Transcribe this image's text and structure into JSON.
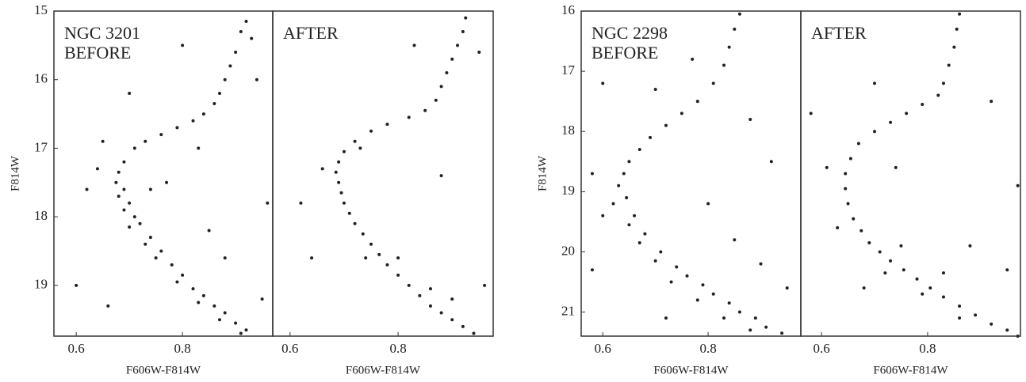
{
  "chart_data": [
    {
      "type": "scatter",
      "annotation": [
        "NGC 3201",
        "BEFORE"
      ],
      "xlabel": "F606W-F814W",
      "ylabel": "F814W",
      "color": "#222222",
      "xlim": [
        0.558,
        0.97
      ],
      "ylim": [
        19.74,
        15
      ],
      "xticks": [
        0.6,
        0.8
      ],
      "yticks": [
        15,
        16,
        17,
        18,
        19
      ],
      "x": [
        0.92,
        0.91,
        0.93,
        0.9,
        0.89,
        0.88,
        0.87,
        0.86,
        0.84,
        0.82,
        0.79,
        0.76,
        0.73,
        0.71,
        0.69,
        0.68,
        0.675,
        0.69,
        0.68,
        0.7,
        0.69,
        0.71,
        0.72,
        0.7,
        0.74,
        0.73,
        0.76,
        0.75,
        0.78,
        0.8,
        0.79,
        0.82,
        0.84,
        0.83,
        0.86,
        0.88,
        0.87,
        0.9,
        0.92,
        0.91,
        0.64,
        0.62,
        0.77,
        0.85,
        0.95,
        0.6,
        0.66,
        0.83,
        0.94,
        0.96,
        0.8,
        0.7,
        0.88,
        0.65,
        0.74
      ],
      "values": [
        15.15,
        15.3,
        15.4,
        15.6,
        15.8,
        16.0,
        16.2,
        16.35,
        16.5,
        16.6,
        16.7,
        16.8,
        16.9,
        17.0,
        17.2,
        17.35,
        17.5,
        17.6,
        17.7,
        17.8,
        17.9,
        18.0,
        18.1,
        18.15,
        18.3,
        18.4,
        18.5,
        18.6,
        18.7,
        18.85,
        18.95,
        19.05,
        19.15,
        19.25,
        19.3,
        19.4,
        19.5,
        19.55,
        19.65,
        19.7,
        17.3,
        17.6,
        17.5,
        18.2,
        19.2,
        19.0,
        19.3,
        17.0,
        16.0,
        17.8,
        15.5,
        16.2,
        18.6,
        16.9,
        17.6
      ]
    },
    {
      "type": "scatter",
      "annotation": [
        "AFTER"
      ],
      "xlabel": "F606W-F814W",
      "color": "#222222",
      "xlim": [
        0.568,
        0.976
      ],
      "ylim": [
        19.74,
        15
      ],
      "xticks": [
        0.6,
        0.8
      ],
      "x": [
        0.925,
        0.92,
        0.91,
        0.9,
        0.89,
        0.88,
        0.87,
        0.85,
        0.82,
        0.78,
        0.75,
        0.72,
        0.7,
        0.69,
        0.685,
        0.69,
        0.695,
        0.7,
        0.71,
        0.72,
        0.735,
        0.75,
        0.765,
        0.78,
        0.8,
        0.82,
        0.84,
        0.86,
        0.88,
        0.9,
        0.92,
        0.94,
        0.74,
        0.8,
        0.86,
        0.9,
        0.66,
        0.95,
        0.62,
        0.83,
        0.96,
        0.73,
        0.88,
        0.64
      ],
      "values": [
        15.1,
        15.3,
        15.5,
        15.7,
        15.9,
        16.1,
        16.3,
        16.45,
        16.55,
        16.65,
        16.75,
        16.9,
        17.05,
        17.2,
        17.35,
        17.5,
        17.65,
        17.8,
        17.95,
        18.1,
        18.25,
        18.4,
        18.55,
        18.7,
        18.85,
        19.0,
        19.15,
        19.3,
        19.4,
        19.5,
        19.6,
        19.7,
        18.6,
        18.6,
        19.05,
        19.2,
        17.3,
        15.6,
        17.8,
        15.5,
        19.0,
        17.0,
        17.4,
        18.6
      ]
    },
    {
      "type": "scatter",
      "annotation": [
        "NGC 2298",
        "BEFORE"
      ],
      "xlabel": "F606W-F814W",
      "ylabel": "F814W",
      "color": "#222222",
      "xlim": [
        0.559,
        0.976
      ],
      "ylim": [
        21.4,
        16
      ],
      "xticks": [
        0.6,
        0.8
      ],
      "yticks": [
        16,
        17,
        18,
        19,
        20,
        21
      ],
      "x": [
        0.86,
        0.85,
        0.84,
        0.83,
        0.81,
        0.78,
        0.75,
        0.72,
        0.69,
        0.67,
        0.65,
        0.64,
        0.63,
        0.645,
        0.62,
        0.66,
        0.65,
        0.68,
        0.67,
        0.71,
        0.7,
        0.74,
        0.76,
        0.73,
        0.79,
        0.81,
        0.78,
        0.84,
        0.86,
        0.83,
        0.89,
        0.91,
        0.88,
        0.94,
        0.58,
        0.6,
        0.7,
        0.77,
        0.88,
        0.8,
        0.9,
        0.95,
        0.6,
        0.72,
        0.85,
        0.92,
        0.58
      ],
      "values": [
        16.05,
        16.3,
        16.6,
        16.9,
        17.2,
        17.5,
        17.7,
        17.9,
        18.1,
        18.3,
        18.5,
        18.7,
        18.9,
        19.1,
        19.2,
        19.4,
        19.55,
        19.7,
        19.85,
        20.0,
        20.15,
        20.25,
        20.4,
        20.5,
        20.55,
        20.7,
        20.8,
        20.85,
        21.0,
        21.1,
        21.1,
        21.25,
        21.3,
        21.35,
        18.7,
        19.4,
        17.3,
        16.8,
        17.8,
        19.2,
        20.2,
        20.6,
        17.2,
        21.1,
        19.8,
        18.5,
        20.3
      ]
    },
    {
      "type": "scatter",
      "annotation": [
        "AFTER"
      ],
      "xlabel": "F606W-F814W",
      "color": "#222222",
      "xlim": [
        0.561,
        0.975
      ],
      "ylim": [
        21.4,
        16
      ],
      "xticks": [
        0.6,
        0.8
      ],
      "x": [
        0.86,
        0.855,
        0.85,
        0.84,
        0.83,
        0.82,
        0.79,
        0.76,
        0.73,
        0.7,
        0.67,
        0.655,
        0.645,
        0.645,
        0.65,
        0.66,
        0.675,
        0.69,
        0.71,
        0.73,
        0.755,
        0.78,
        0.805,
        0.83,
        0.86,
        0.89,
        0.92,
        0.95,
        0.97,
        0.72,
        0.79,
        0.86,
        0.75,
        0.83,
        0.61,
        0.58,
        0.7,
        0.74,
        0.88,
        0.95,
        0.92,
        0.63,
        0.97,
        0.68
      ],
      "values": [
        16.05,
        16.3,
        16.6,
        16.9,
        17.2,
        17.4,
        17.55,
        17.7,
        17.85,
        18.0,
        18.2,
        18.45,
        18.7,
        18.95,
        19.2,
        19.45,
        19.65,
        19.85,
        20.0,
        20.15,
        20.3,
        20.45,
        20.6,
        20.75,
        20.9,
        21.05,
        21.2,
        21.3,
        21.4,
        20.35,
        20.7,
        21.1,
        19.9,
        20.35,
        18.6,
        17.7,
        17.2,
        18.6,
        19.9,
        20.3,
        17.5,
        19.6,
        18.9,
        20.6
      ]
    }
  ]
}
